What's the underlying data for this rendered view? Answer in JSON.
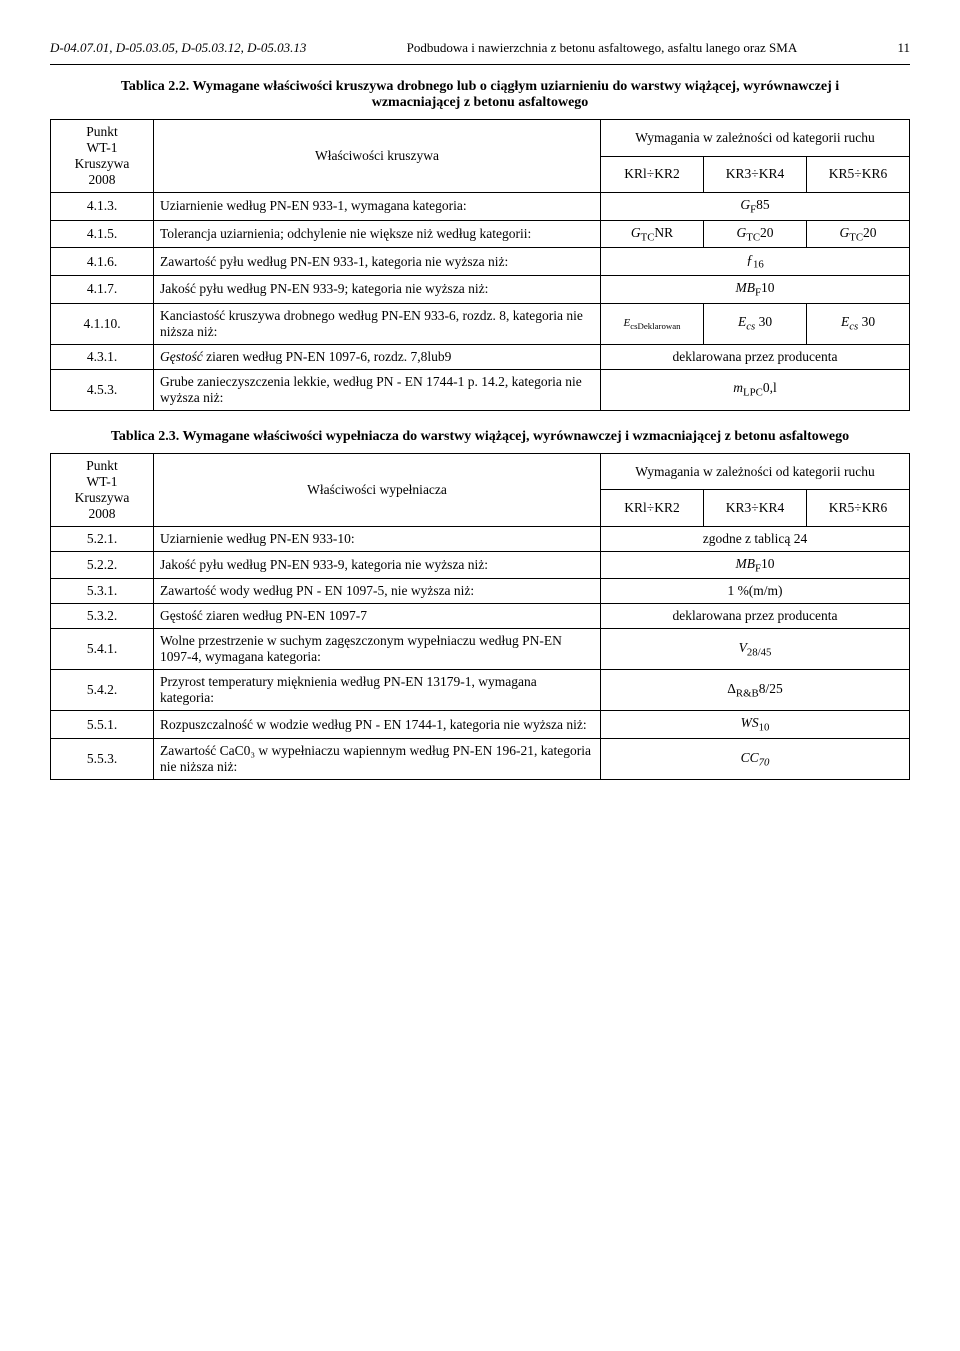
{
  "header": {
    "left": "D-04.07.01, D-05.03.05, D-05.03.12, D-05.03.13",
    "center": "Podbudowa i nawierzchnia z betonu asfaltowego, asfaltu lanego oraz SMA",
    "page": "11"
  },
  "table22": {
    "caption": "Tablica 2.2. Wymagane właściwości kruszywa drobnego lub o ciągłym uziarnieniu do warstwy wiążącej, wyrównawczej i wzmacniającej z betonu asfaltowego",
    "col_punkt_header": "Punkt\nWT-1\nKruszywa\n2008",
    "col_prop_header": "Właściwości kruszywa",
    "col_req_header": "Wymagania w zależności od kategorii ruchu",
    "kr1": "KRl÷KR2",
    "kr2": "KR3÷KR4",
    "kr3": "KR5÷KR6",
    "rows": [
      {
        "ref": "4.1.3.",
        "prop": "Uziarnienie według PN-EN 933-1, wymagana kategoria:",
        "v_full": "G_F85"
      },
      {
        "ref": "4.1.5.",
        "prop": "Tolerancja uziarnienia; odchylenie nie większe niż według kategorii:",
        "v1": "G_TCNR",
        "v2": "G_TC20",
        "v3": "G_TC20"
      },
      {
        "ref": "4.1.6.",
        "prop": "Zawartość pyłu według PN-EN 933-1, kategoria nie wyższa niż:",
        "v_full": "ƒ_16"
      },
      {
        "ref": "4.1.7.",
        "prop": "Jakość pyłu według PN-EN 933-9; kategoria nie wyższa niż:",
        "v_full": "MB_F10"
      },
      {
        "ref": "4.1.10.",
        "prop": "Kanciastość kruszywa drobnego według PN-EN 933-6, rozdz. 8, kategoria nie niższa niż:",
        "v1": "E_csDeklarowan",
        "v2": "E_cs 30",
        "v3": "E_cs 30"
      },
      {
        "ref": "4.3.1.",
        "prop": "Gęstość ziaren według PN-EN 1097-6, rozdz. 7,8lub9",
        "v_full": "deklarowana przez producenta"
      },
      {
        "ref": "4.5.3.",
        "prop": "Grube zanieczyszczenia lekkie, według PN - EN 1744-1 p. 14.2, kategoria nie wyższa niż:",
        "v_full": "m_LPC0,l"
      }
    ]
  },
  "table23": {
    "caption": "Tablica 2.3. Wymagane właściwości wypełniacza do warstwy wiążącej, wyrównawczej i wzmacniającej z betonu asfaltowego",
    "col_punkt_header": "Punkt\nWT-1\nKruszywa\n2008",
    "col_prop_header": "Właściwości wypełniacza",
    "col_req_header": "Wymagania w zależności od kategorii ruchu",
    "kr1": "KRl÷KR2",
    "kr2": "KR3÷KR4",
    "kr3": "KR5÷KR6",
    "rows": [
      {
        "ref": "5.2.1.",
        "prop": "Uziarnienie według PN-EN 933-10:",
        "v_full": "zgodne z tablicą 24"
      },
      {
        "ref": "5.2.2.",
        "prop": "Jakość pyłu według PN-EN 933-9, kategoria nie wyższa niż:",
        "v_full": "MB_F10"
      },
      {
        "ref": "5.3.1.",
        "prop": "Zawartość wody według PN - EN 1097-5, nie wyższa niż:",
        "v_full": "1 %(m/m)"
      },
      {
        "ref": "5.3.2.",
        "prop": "Gęstość ziaren według PN-EN 1097-7",
        "v_full": "deklarowana przez producenta"
      },
      {
        "ref": "5.4.1.",
        "prop": "Wolne przestrzenie w suchym zagęszczonym wypełniaczu według PN-EN 1097-4, wymagana kategoria:",
        "v_full": "V_28/45"
      },
      {
        "ref": "5.4.2.",
        "prop": "Przyrost temperatury mięknienia według PN-EN 13179-1, wymagana kategoria:",
        "v_full": "Δ_R&B8/25"
      },
      {
        "ref": "5.5.1.",
        "prop": "Rozpuszczalność w wodzie według PN - EN 1744-1, kategoria nie wyższa niż:",
        "v_full": "WS_10"
      },
      {
        "ref": "5.5.3.",
        "prop": "Zawartość CaC0₃ w wypełniaczu wapiennym według PN-EN 196-21, kategoria nie niższa niż:",
        "v_full": "CC_70"
      }
    ]
  }
}
